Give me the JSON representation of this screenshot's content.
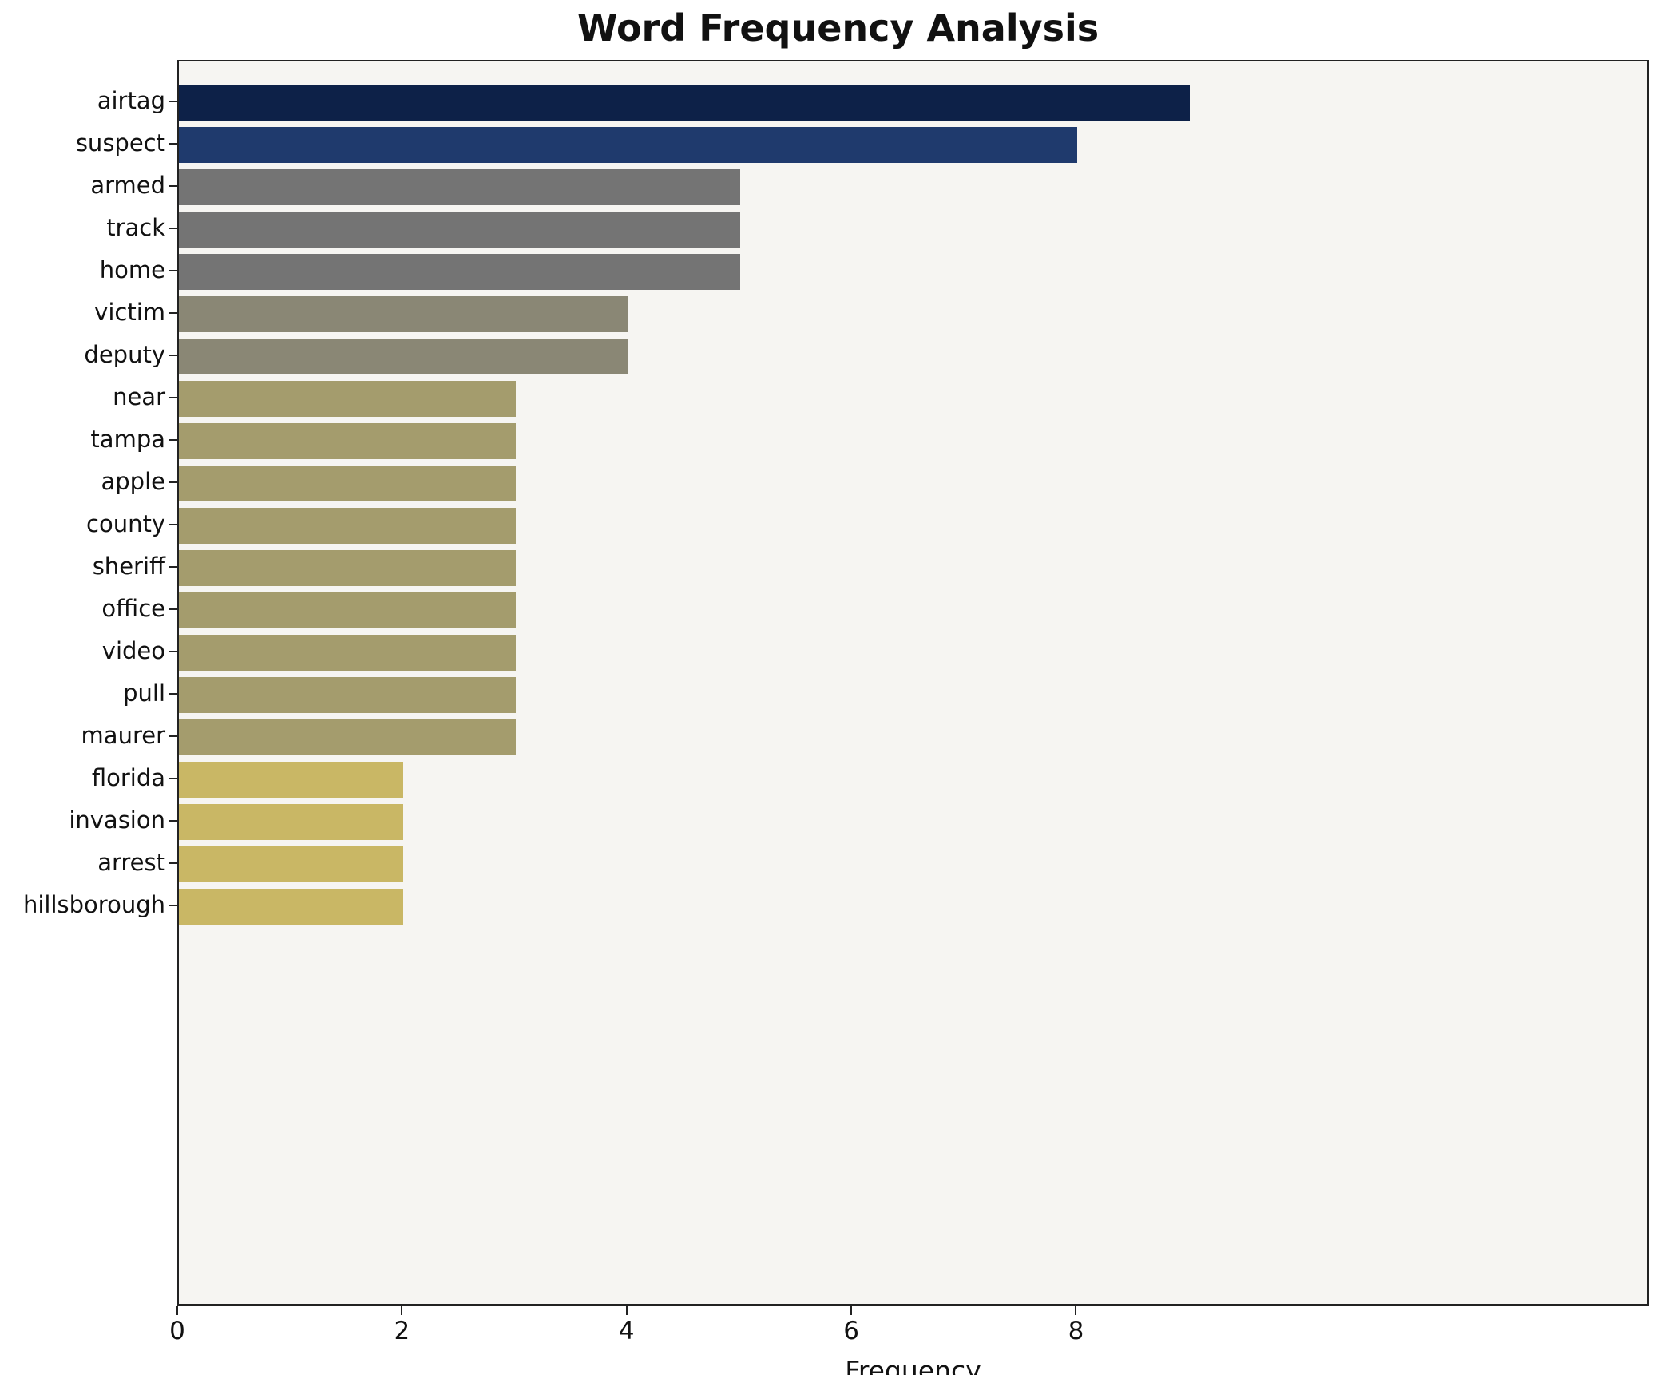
{
  "chart_data": {
    "type": "bar",
    "orientation": "horizontal",
    "title": "Word Frequency Analysis",
    "xlabel": "Frequency",
    "ylabel": "",
    "categories": [
      "airtag",
      "suspect",
      "armed",
      "track",
      "home",
      "victim",
      "deputy",
      "near",
      "tampa",
      "apple",
      "county",
      "sheriff",
      "office",
      "video",
      "pull",
      "maurer",
      "florida",
      "invasion",
      "arrest",
      "hillsborough"
    ],
    "values": [
      9,
      8,
      5,
      5,
      5,
      4,
      4,
      3,
      3,
      3,
      3,
      3,
      3,
      3,
      3,
      3,
      2,
      2,
      2,
      2
    ],
    "bar_colors": [
      "#0d2148",
      "#1f3a6d",
      "#747474",
      "#747474",
      "#747474",
      "#8a8775",
      "#8a8775",
      "#a49c6d",
      "#a49c6d",
      "#a49c6d",
      "#a49c6d",
      "#a49c6d",
      "#a49c6d",
      "#a49c6d",
      "#a49c6d",
      "#a49c6d",
      "#c9b765",
      "#c9b765",
      "#c9b765",
      "#c9b765"
    ],
    "xticks": [
      0,
      2,
      4,
      6,
      8
    ],
    "xlim": [
      0,
      13.1
    ],
    "grid": false,
    "legend": "none",
    "plot_background": "#f6f5f2",
    "spine_color": "#222222"
  }
}
